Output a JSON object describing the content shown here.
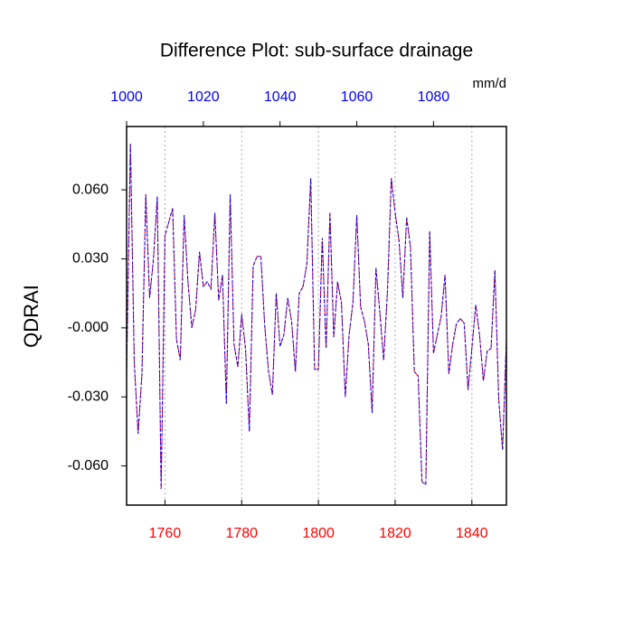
{
  "chart_data": {
    "type": "line",
    "title": "Difference Plot: sub-surface drainage",
    "units_label": "mm/d",
    "y_label": "QDRAI",
    "x": [
      1750,
      1751,
      1752,
      1753,
      1754,
      1755,
      1756,
      1757,
      1758,
      1759,
      1760,
      1761,
      1762,
      1763,
      1764,
      1765,
      1766,
      1767,
      1768,
      1769,
      1770,
      1771,
      1772,
      1773,
      1774,
      1775,
      1776,
      1777,
      1778,
      1779,
      1780,
      1781,
      1782,
      1783,
      1784,
      1785,
      1786,
      1787,
      1788,
      1789,
      1790,
      1791,
      1792,
      1793,
      1794,
      1795,
      1796,
      1797,
      1798,
      1799,
      1800,
      1801,
      1802,
      1803,
      1804,
      1805,
      1806,
      1807,
      1808,
      1809,
      1810,
      1811,
      1812,
      1813,
      1814,
      1815,
      1816,
      1817,
      1818,
      1819,
      1820,
      1821,
      1822,
      1823,
      1824,
      1825,
      1826,
      1827,
      1828,
      1829,
      1830,
      1831,
      1832,
      1833,
      1834,
      1835,
      1836,
      1837,
      1838,
      1839,
      1840,
      1841,
      1842,
      1843,
      1844,
      1845,
      1846,
      1847,
      1848,
      1849
    ],
    "series": [
      {
        "color": "#ff0000",
        "values": [
          -0.02,
          0.08,
          -0.015,
          -0.046,
          -0.02,
          0.058,
          0.013,
          0.03,
          0.057,
          -0.07,
          0.04,
          0.046,
          0.052,
          -0.005,
          -0.014,
          0.049,
          0.02,
          0.0,
          0.008,
          0.033,
          0.018,
          0.02,
          0.017,
          0.05,
          0.012,
          0.023,
          -0.033,
          0.058,
          -0.007,
          -0.017,
          0.006,
          -0.009,
          -0.045,
          0.027,
          0.031,
          0.031,
          0.001,
          -0.019,
          -0.029,
          0.015,
          -0.008,
          -0.003,
          0.013,
          0.003,
          -0.019,
          0.015,
          0.018,
          0.028,
          0.065,
          -0.018,
          -0.018,
          0.039,
          -0.009,
          0.05,
          -0.004,
          0.02,
          0.011,
          -0.03,
          -0.003,
          0.011,
          0.049,
          0.009,
          0.003,
          -0.007,
          -0.037,
          0.026,
          0.007,
          -0.014,
          0.016,
          0.065,
          0.05,
          0.038,
          0.013,
          0.048,
          0.035,
          -0.019,
          -0.021,
          -0.067,
          -0.068,
          0.042,
          -0.011,
          -0.003,
          0.005,
          0.023,
          -0.02,
          -0.007,
          0.002,
          0.004,
          0.002,
          -0.027,
          -0.009,
          0.01,
          -0.003,
          -0.023,
          -0.01,
          -0.009,
          0.025,
          -0.031,
          -0.053,
          -0.005
        ]
      },
      {
        "color": "#0000ff",
        "values": [
          -0.02,
          0.08,
          -0.015,
          -0.046,
          -0.02,
          0.058,
          0.013,
          0.03,
          0.057,
          -0.07,
          0.04,
          0.046,
          0.052,
          -0.005,
          -0.014,
          0.049,
          0.02,
          0.0,
          0.008,
          0.033,
          0.018,
          0.02,
          0.017,
          0.05,
          0.012,
          0.023,
          -0.033,
          0.058,
          -0.007,
          -0.017,
          0.006,
          -0.009,
          -0.045,
          0.027,
          0.031,
          0.031,
          0.001,
          -0.019,
          -0.029,
          0.015,
          -0.008,
          -0.003,
          0.013,
          0.003,
          -0.019,
          0.015,
          0.018,
          0.028,
          0.065,
          -0.018,
          -0.018,
          0.039,
          -0.009,
          0.05,
          -0.004,
          0.02,
          0.011,
          -0.03,
          -0.003,
          0.011,
          0.049,
          0.009,
          0.003,
          -0.007,
          -0.037,
          0.026,
          0.007,
          -0.014,
          0.016,
          0.065,
          0.05,
          0.038,
          0.013,
          0.048,
          0.035,
          -0.019,
          -0.021,
          -0.067,
          -0.068,
          0.042,
          -0.011,
          -0.003,
          0.005,
          0.023,
          -0.02,
          -0.007,
          0.002,
          0.004,
          0.002,
          -0.027,
          -0.009,
          0.01,
          -0.003,
          -0.023,
          -0.01,
          -0.009,
          0.025,
          -0.031,
          -0.053,
          -0.005
        ]
      }
    ],
    "xlim": [
      1750,
      1849
    ],
    "xticks": [
      1760,
      1780,
      1800,
      1820,
      1840
    ],
    "xtick_color": "#ff0000",
    "x2lim": [
      1000,
      1099
    ],
    "x2ticks": [
      1000,
      1020,
      1040,
      1060,
      1080
    ],
    "x2tick_color": "#0000ff",
    "ylim": [
      -0.077,
      0.0875
    ],
    "yticks": [
      {
        "value": -0.06,
        "label": "-0.060"
      },
      {
        "value": -0.03,
        "label": "-0.030"
      },
      {
        "value": 0,
        "label": "-0.000"
      },
      {
        "value": 0.03,
        "label": "0.030"
      },
      {
        "value": 0.06,
        "label": "0.060"
      }
    ],
    "grid": true
  }
}
